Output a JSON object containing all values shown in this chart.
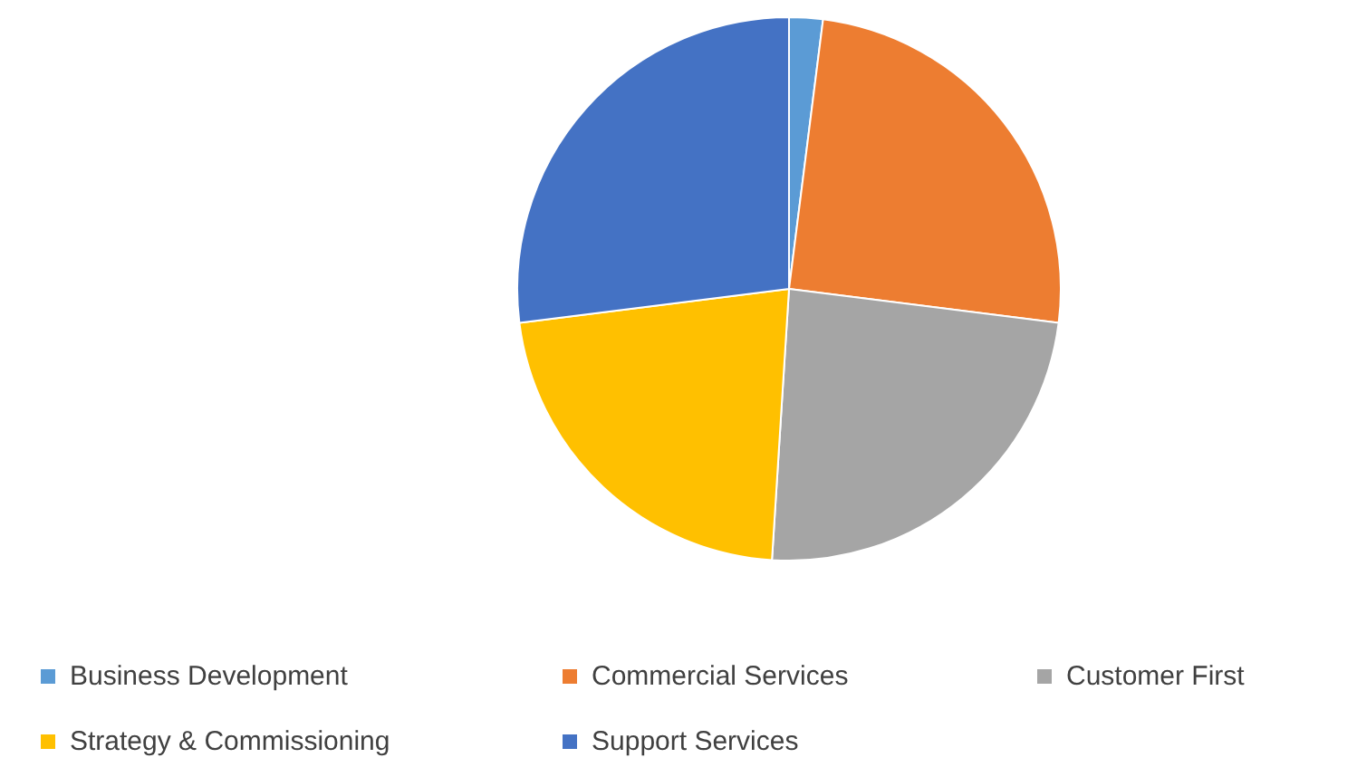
{
  "chart_data": {
    "type": "pie",
    "categories": [
      "Business Development",
      "Commercial Services",
      "Customer First",
      "Strategy & Commissioning",
      "Support Services"
    ],
    "values": [
      2,
      25,
      24,
      22,
      27
    ],
    "colors": [
      "#5b9bd5",
      "#ed7d31",
      "#a5a5a5",
      "#ffc000",
      "#4472c4"
    ],
    "legend": "bottom"
  }
}
